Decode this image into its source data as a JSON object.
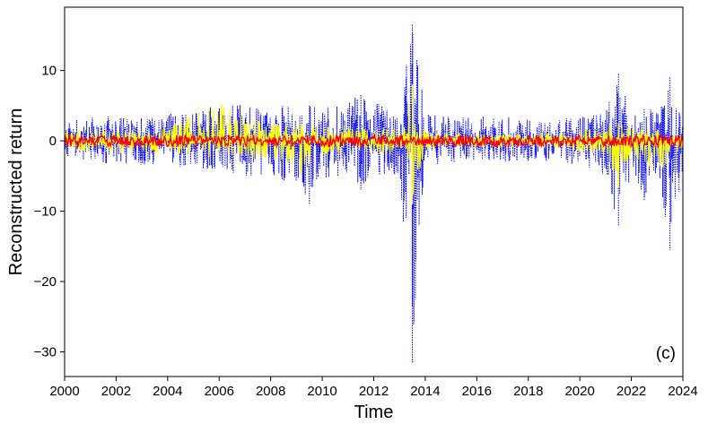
{
  "chart_data": {
    "type": "line",
    "title": "",
    "xlabel": "Time",
    "ylabel": "Reconstructed return",
    "panel_label": "(c)",
    "xlim": [
      2000,
      2024
    ],
    "ylim": [
      -33.5,
      19
    ],
    "xticks": [
      2000,
      2002,
      2004,
      2006,
      2008,
      2010,
      2012,
      2014,
      2016,
      2018,
      2020,
      2022,
      2024
    ],
    "yticks": [
      10,
      0,
      -10,
      -20,
      -30
    ],
    "grid": false,
    "legend": "none",
    "series": [
      {
        "color": "#0000ff",
        "style": "dotted",
        "envelope": {
          "x": [
            2000,
            2001,
            2002,
            2003,
            2004,
            2005,
            2006,
            2007,
            2008,
            2008.5,
            2009,
            2009.5,
            2010,
            2011,
            2011.5,
            2012,
            2013,
            2013.5,
            2014,
            2015,
            2016,
            2017,
            2018,
            2019,
            2020,
            2020.5,
            2021,
            2021.5,
            2022,
            2022.5,
            2023,
            2023.5,
            2024
          ],
          "high": [
            2.5,
            3.5,
            3.5,
            3.5,
            4,
            4.5,
            5.5,
            5,
            4.5,
            5.5,
            5.5,
            5,
            5,
            6,
            6.5,
            5.5,
            4.5,
            16.5,
            4,
            3.5,
            3.5,
            3.5,
            3,
            3,
            3.5,
            4,
            4.5,
            9.5,
            5,
            4.5,
            4.5,
            9,
            4
          ],
          "low": [
            -2.5,
            -3,
            -3.5,
            -3.5,
            -3.5,
            -4,
            -4.5,
            -5,
            -5,
            -6,
            -6,
            -9,
            -5.5,
            -5,
            -7,
            -5,
            -5,
            -31.5,
            -4,
            -3.5,
            -3,
            -3,
            -3,
            -3,
            -3.5,
            -4,
            -5,
            -12,
            -5,
            -8.5,
            -5,
            -15.5,
            -4
          ]
        }
      },
      {
        "color": "#ffff00",
        "style": "solid",
        "envelope": {
          "x": [
            2000,
            2004,
            2006,
            2008,
            2009,
            2010,
            2012,
            2013,
            2013.5,
            2014,
            2016,
            2018,
            2020,
            2021,
            2021.5,
            2022,
            2023,
            2024
          ],
          "high": [
            1.5,
            2,
            5.5,
            2.5,
            2.5,
            2.5,
            2,
            2,
            8,
            1.5,
            1,
            1,
            1.5,
            2.5,
            2.5,
            2,
            2,
            1.5
          ],
          "low": [
            -1.5,
            -2,
            -2.5,
            -2.5,
            -5.5,
            -2.5,
            -2,
            -2,
            -9,
            -1.5,
            -1,
            -1,
            -1.5,
            -2.5,
            -6.5,
            -2,
            -4.5,
            -1.5
          ]
        }
      },
      {
        "color": "#ff0000",
        "style": "solid",
        "envelope": {
          "x": [
            2000,
            2024
          ],
          "high": [
            0.8,
            0.8
          ],
          "low": [
            -0.8,
            -0.8
          ]
        }
      }
    ]
  }
}
